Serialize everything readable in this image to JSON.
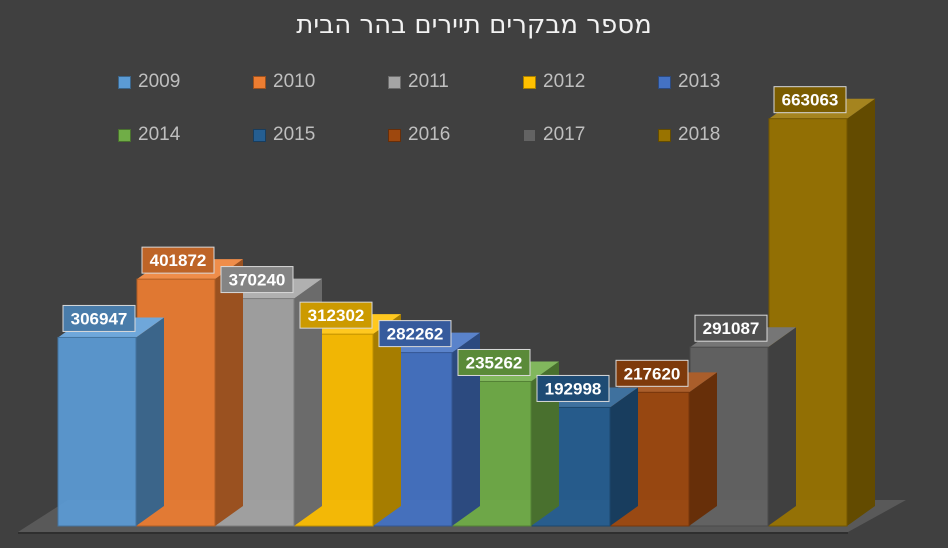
{
  "chart_data": {
    "type": "bar",
    "title": "מספר מבקרים תיירים בהר הבית",
    "categories": [
      "2009",
      "2010",
      "2011",
      "2012",
      "2013",
      "2014",
      "2015",
      "2016",
      "2017",
      "2018"
    ],
    "values": [
      306947,
      401872,
      370240,
      312302,
      282262,
      235262,
      192998,
      217620,
      291087,
      663063
    ],
    "series": [
      {
        "name": "2009",
        "value": 306947,
        "color": "#5b9bd5"
      },
      {
        "name": "2010",
        "value": 401872,
        "color": "#ed7d31"
      },
      {
        "name": "2011",
        "value": 370240,
        "color": "#a5a5a5"
      },
      {
        "name": "2012",
        "value": 312302,
        "color": "#ffc000"
      },
      {
        "name": "2013",
        "value": 282262,
        "color": "#4472c4"
      },
      {
        "name": "2014",
        "value": 235262,
        "color": "#70ad47"
      },
      {
        "name": "2015",
        "value": 192998,
        "color": "#255e91"
      },
      {
        "name": "2016",
        "value": 217620,
        "color": "#9e480e"
      },
      {
        "name": "2017",
        "value": 291087,
        "color": "#636363"
      },
      {
        "name": "2018",
        "value": 663063,
        "color": "#997300"
      }
    ],
    "ylim": [
      0,
      700000
    ],
    "xlabel": "",
    "ylabel": "",
    "grid": false,
    "legend_position": "top"
  }
}
